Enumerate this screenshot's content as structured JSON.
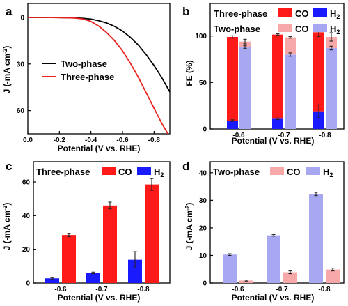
{
  "colors": {
    "co_three": "#ff1a1a",
    "h2_three": "#1a1aff",
    "co_two": "#f7a8a8",
    "h2_two": "#a8a8f2",
    "line_two": "#000000",
    "line_three": "#e8201e",
    "error": "#222222"
  },
  "legend_text": {
    "three": "Three-phase",
    "two": "Two-phase",
    "co": "CO",
    "h2": "H",
    "h2_sub": "2"
  },
  "chart_data": [
    {
      "panel": "a",
      "type": "line",
      "xlabel": "Potential (V vs. RHE)",
      "ylabel": "J (-mA cm",
      "ylabel_sup": "-2",
      "ylabel_end": ")",
      "xlim": [
        0.0,
        -0.9
      ],
      "ylim": [
        0,
        75
      ],
      "y_inverted": true,
      "xticks": [
        "0.0",
        "-0.2",
        "-0.4",
        "-0.6",
        "-0.8"
      ],
      "xtick_values": [
        0.0,
        -0.2,
        -0.4,
        -0.6,
        -0.8
      ],
      "yticks": [
        "0",
        "30",
        "60"
      ],
      "ytick_values": [
        0,
        30,
        60
      ],
      "legend": "center-right",
      "series": [
        {
          "name": "Two-phase",
          "color_key": "line_two",
          "x": [
            0.0,
            -0.1,
            -0.2,
            -0.3,
            -0.35,
            -0.4,
            -0.45,
            -0.5,
            -0.55,
            -0.6,
            -0.65,
            -0.7,
            -0.75,
            -0.8,
            -0.85,
            -0.9
          ],
          "y": [
            0.0,
            0.0,
            0.1,
            0.3,
            0.6,
            1.1,
            2.1,
            3.6,
            5.8,
            8.8,
            12.8,
            17.8,
            24.0,
            31.0,
            39.0,
            48.0
          ]
        },
        {
          "name": "Three-phase",
          "color_key": "line_three",
          "x": [
            0.0,
            -0.1,
            -0.2,
            -0.3,
            -0.35,
            -0.4,
            -0.45,
            -0.5,
            -0.55,
            -0.6,
            -0.65,
            -0.7,
            -0.75,
            -0.8,
            -0.85,
            -0.9
          ],
          "y": [
            0.0,
            0.0,
            0.1,
            0.4,
            1.0,
            2.6,
            5.6,
            9.8,
            15.0,
            21.5,
            29.5,
            38.5,
            48.5,
            58.5,
            68.5,
            77.0
          ]
        }
      ]
    },
    {
      "panel": "b",
      "type": "bar",
      "xlabel": "Potential (V vs. RHE)",
      "ylabel": "FE (%)",
      "categories": [
        "-0.6",
        "-0.7",
        "-0.8"
      ],
      "ylim": [
        0,
        135
      ],
      "yticks": [
        "0",
        "50",
        "100"
      ],
      "ytick_values": [
        0,
        50,
        100
      ],
      "legend": "top",
      "groups": [
        {
          "name": "Three-phase",
          "stacked": true,
          "h2": [
            9,
            11,
            19
          ],
          "h2_err": [
            0.8,
            0.8,
            7
          ],
          "co": [
            90,
            90.5,
            85
          ],
          "total_err": [
            1.2,
            0.8,
            4.5
          ]
        },
        {
          "name": "Two-phase",
          "stacked": true,
          "h2": [
            88,
            80,
            87
          ],
          "h2_err": [
            1.5,
            1.8,
            2
          ],
          "co": [
            6,
            18.5,
            12
          ],
          "total_err": [
            2.5,
            0.8,
            4.5
          ]
        }
      ]
    },
    {
      "panel": "c",
      "type": "bar",
      "xlabel": "Potential (V vs. RHE)",
      "ylabel": "J (-mA cm",
      "ylabel_sup": "-2",
      "ylabel_end": ")",
      "categories": [
        "-0.6",
        "-0.7",
        "-0.8"
      ],
      "ylim": [
        0,
        72
      ],
      "yticks": [
        "0",
        "20",
        "40",
        "60"
      ],
      "ytick_values": [
        0,
        20,
        40,
        60
      ],
      "legend": "top",
      "legend_title": "Three-phase",
      "series": [
        {
          "name": "H2",
          "color_key": "h2_three",
          "values": [
            2.8,
            6.0,
            13.8
          ],
          "errors": [
            0.4,
            0.5,
            4.8
          ]
        },
        {
          "name": "CO",
          "color_key": "co_three",
          "values": [
            28.5,
            46.0,
            58.5
          ],
          "errors": [
            1.0,
            2.0,
            3.5
          ]
        }
      ]
    },
    {
      "panel": "d",
      "type": "bar",
      "xlabel": "Potential (V vs. RHE)",
      "ylabel": "J (-mA cm",
      "ylabel_sup": "-2",
      "ylabel_end": ")",
      "categories": [
        "-0.6",
        "-0.7",
        "-0.8"
      ],
      "ylim": [
        0,
        44
      ],
      "yticks": [
        "0",
        "10",
        "20",
        "30",
        "40"
      ],
      "ytick_values": [
        0,
        10,
        20,
        30,
        40
      ],
      "legend": "top",
      "legend_title": "Two-phase",
      "series": [
        {
          "name": "H2",
          "color_key": "h2_two",
          "values": [
            10.3,
            17.3,
            32.3
          ],
          "errors": [
            0.3,
            0.3,
            0.6
          ]
        },
        {
          "name": "CO",
          "color_key": "co_two",
          "values": [
            0.9,
            3.9,
            4.9
          ],
          "errors": [
            0.2,
            0.5,
            0.5
          ]
        }
      ]
    }
  ]
}
